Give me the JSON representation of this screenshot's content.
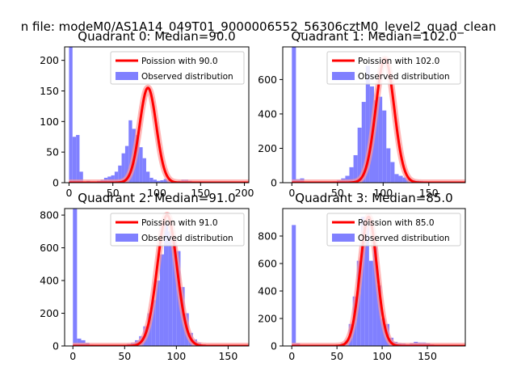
{
  "suptitle": "n file: modeM0/AS1A14_049T01_9000006552_56306cztM0_level2_quad_clean",
  "colors": {
    "hist": "#8080ff",
    "fit": "#ff0000",
    "fit_glow": "#ff9999",
    "axis": "#000000",
    "legend_border": "#cccccc"
  },
  "chart_data": [
    {
      "type": "bar",
      "title": "Quadrant 0: Median=90.0",
      "legend": [
        "Poission with 90.0",
        "Observed distribution"
      ],
      "legend_position": "top-right",
      "xlim": [
        -5,
        205
      ],
      "ylim": [
        0,
        222
      ],
      "xticks": [
        0,
        50,
        100,
        150,
        200
      ],
      "xtick_labels": [
        "0",
        "50",
        "100",
        "150",
        "200"
      ],
      "yticks": [
        0,
        50,
        100,
        150,
        200
      ],
      "ytick_labels": [
        "0",
        "50",
        "100",
        "150",
        "200"
      ],
      "bin_start": 0,
      "bin_width": 4,
      "values": [
        222,
        75,
        78,
        18,
        2,
        3,
        2,
        1,
        3,
        5,
        8,
        10,
        12,
        18,
        28,
        48,
        60,
        102,
        88,
        78,
        58,
        40,
        18,
        8,
        5,
        3,
        4,
        6,
        4,
        3,
        2,
        3,
        5,
        5,
        3,
        2,
        2,
        2,
        2,
        1,
        1,
        1
      ],
      "poisson_mean": 90.0,
      "poisson_peak": 155
    },
    {
      "type": "bar",
      "title": "Quadrant 1: Median=102.0",
      "legend": [
        "Poission with 102.0",
        "Observed distribution"
      ],
      "legend_position": "top-right",
      "xlim": [
        -10,
        190
      ],
      "ylim": [
        0,
        790
      ],
      "xticks": [
        0,
        50,
        100,
        150
      ],
      "xtick_labels": [
        "0",
        "50",
        "100",
        "150"
      ],
      "yticks": [
        0,
        200,
        400,
        600
      ],
      "ytick_labels": [
        "0",
        "200",
        "400",
        "600"
      ],
      "bin_start": 0,
      "bin_width": 4.5,
      "values": [
        790,
        20,
        25,
        5,
        3,
        2,
        3,
        2,
        3,
        5,
        8,
        15,
        25,
        40,
        90,
        160,
        320,
        470,
        680,
        560,
        480,
        500,
        420,
        200,
        120,
        50,
        40,
        30,
        20,
        15,
        12,
        10,
        8,
        5,
        5,
        3,
        2,
        2,
        1,
        1
      ],
      "poisson_mean": 102.0,
      "poisson_peak": 720
    },
    {
      "type": "bar",
      "title": "Quadrant 2: Median=91.0",
      "legend": [
        "Poission with 91.0",
        "Observed distribution"
      ],
      "legend_position": "top-right",
      "xlim": [
        -8,
        170
      ],
      "ylim": [
        0,
        840
      ],
      "xticks": [
        0,
        50,
        100,
        150
      ],
      "xtick_labels": [
        "0",
        "50",
        "100",
        "150"
      ],
      "yticks": [
        0,
        200,
        400,
        600,
        800
      ],
      "ytick_labels": [
        "0",
        "200",
        "400",
        "600",
        "800"
      ],
      "bin_start": 0,
      "bin_width": 4,
      "values": [
        840,
        45,
        35,
        20,
        8,
        5,
        3,
        2,
        3,
        2,
        2,
        3,
        5,
        12,
        20,
        35,
        60,
        120,
        200,
        280,
        400,
        560,
        750,
        700,
        640,
        580,
        360,
        200,
        80,
        40,
        20,
        10,
        6,
        5,
        3,
        2,
        2,
        1,
        1,
        1
      ],
      "poisson_mean": 91.0,
      "poisson_peak": 800
    },
    {
      "type": "bar",
      "title": "Quadrant 3: Median=85.0",
      "legend": [
        "Poission with 85.0",
        "Observed distribution"
      ],
      "legend_position": "top-right",
      "xlim": [
        -10,
        192
      ],
      "ylim": [
        0,
        1000
      ],
      "xticks": [
        0,
        50,
        100,
        150
      ],
      "xtick_labels": [
        "0",
        "50",
        "100",
        "150"
      ],
      "yticks": [
        0,
        200,
        400,
        600,
        800
      ],
      "ytick_labels": [
        "0",
        "200",
        "400",
        "600",
        "800"
      ],
      "bin_start": 0,
      "bin_width": 4.5,
      "values": [
        880,
        20,
        4,
        2,
        2,
        1,
        1,
        2,
        2,
        3,
        5,
        10,
        20,
        40,
        160,
        360,
        620,
        940,
        920,
        620,
        720,
        440,
        200,
        160,
        60,
        30,
        20,
        18,
        12,
        20,
        30,
        25,
        25,
        20,
        12,
        8,
        5,
        3
      ],
      "poisson_mean": 85.0,
      "poisson_peak": 940
    }
  ]
}
